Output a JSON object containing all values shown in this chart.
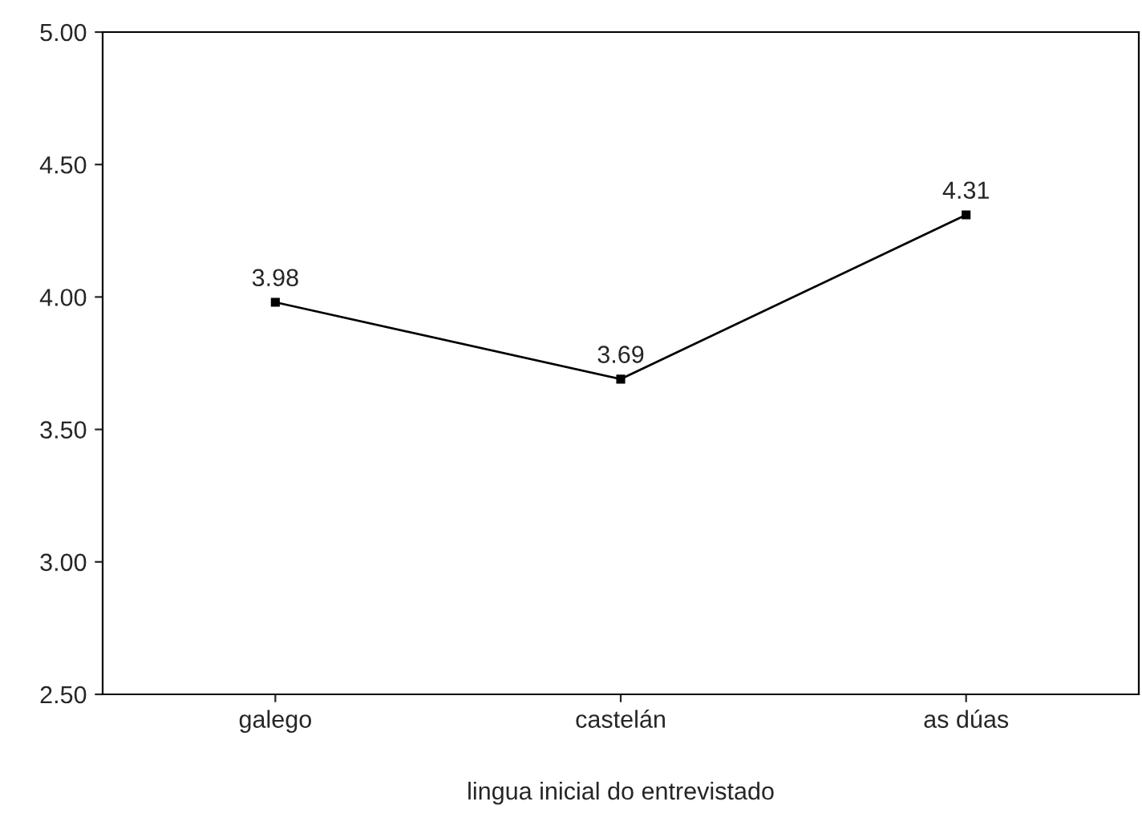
{
  "chart_data": {
    "type": "line",
    "xlabel": "lingua inicial do entrevistado",
    "categories": [
      "galego",
      "castelán",
      "as dúas"
    ],
    "series": [
      {
        "color": "#000000",
        "values": [
          3.98,
          3.69,
          4.31
        ]
      }
    ],
    "ylim": [
      2.5,
      5.0
    ],
    "yticks": [
      {
        "value": 2.5,
        "label": "2.50"
      },
      {
        "value": 3.0,
        "label": "3.00"
      },
      {
        "value": 3.5,
        "label": "3.50"
      },
      {
        "value": 4.0,
        "label": "4.00"
      },
      {
        "value": 4.5,
        "label": "4.50"
      },
      {
        "value": 5.0,
        "label": "5.00"
      }
    ],
    "marker": "square",
    "line_style": "solid",
    "data_labels": true,
    "grid": false,
    "legend": false
  }
}
